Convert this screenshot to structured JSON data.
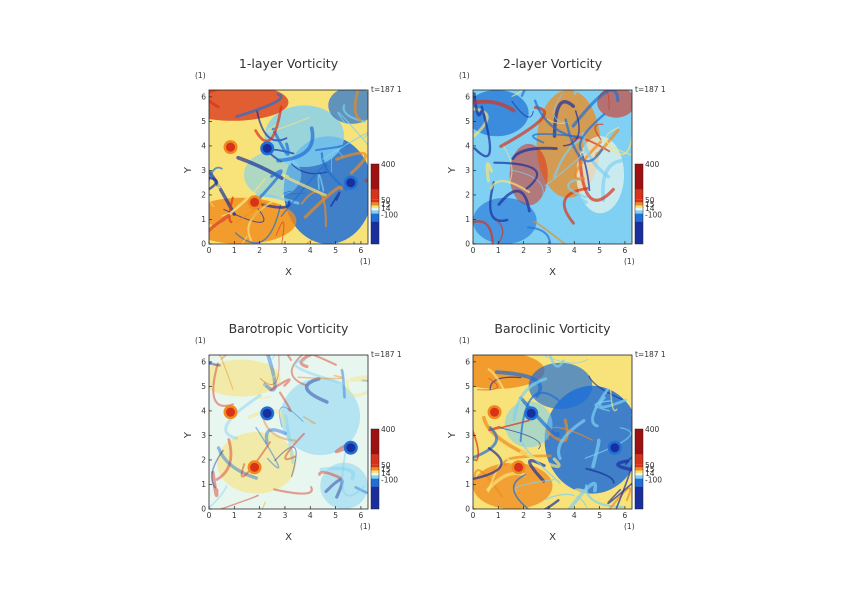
{
  "figure": {
    "colors": {
      "deep_blue": "#1a2f9e",
      "blue": "#1f6fd6",
      "light_blue": "#7fd0f2",
      "pale": "#e8f6f0",
      "yellow": "#f7e37a",
      "orange": "#f08a1c",
      "red": "#d8321a",
      "dark_red": "#a01010",
      "axis": "#222222"
    },
    "time_label": "t=187 1",
    "unit_label": "(1)",
    "colorbar_labels": [
      "400",
      "50",
      "15",
      "14",
      "-100"
    ]
  },
  "chart_data": [
    {
      "type": "heatmap",
      "title": "1-layer Vorticity",
      "xlabel": "X",
      "ylabel": "Y",
      "xlim": [
        0,
        6.28
      ],
      "ylim": [
        0,
        6.28
      ],
      "x_ticks": [
        "0",
        "1",
        "2",
        "3",
        "4",
        "5",
        "6"
      ],
      "y_ticks": [
        "0",
        "1",
        "2",
        "3",
        "4",
        "5",
        "6"
      ],
      "dominant_field": "mixed red/orange south, blue east",
      "vortices": [
        {
          "x": 0.85,
          "y": 3.95,
          "sign": "positive"
        },
        {
          "x": 1.8,
          "y": 1.7,
          "sign": "positive"
        },
        {
          "x": 2.3,
          "y": 3.9,
          "sign": "negative"
        },
        {
          "x": 5.6,
          "y": 2.5,
          "sign": "negative"
        }
      ]
    },
    {
      "type": "heatmap",
      "title": "2-layer Vorticity",
      "xlabel": "X",
      "ylabel": "Y",
      "xlim": [
        0,
        6.28
      ],
      "ylim": [
        0,
        6.28
      ],
      "x_ticks": [
        "0",
        "1",
        "2",
        "3",
        "4",
        "5",
        "6"
      ],
      "y_ticks": [
        "0",
        "1",
        "2",
        "3",
        "4",
        "5",
        "6"
      ],
      "dominant_field": "light blue with orange filaments",
      "vortices": []
    },
    {
      "type": "heatmap",
      "title": "Barotropic Vorticity",
      "xlabel": "X",
      "ylabel": "Y",
      "xlim": [
        0,
        6.28
      ],
      "ylim": [
        0,
        6.28
      ],
      "x_ticks": [
        "0",
        "1",
        "2",
        "3",
        "4",
        "5",
        "6"
      ],
      "y_ticks": [
        "0",
        "1",
        "2",
        "3",
        "4",
        "5",
        "6"
      ],
      "dominant_field": "pale yellow/cyan",
      "vortices": [
        {
          "x": 0.85,
          "y": 3.95,
          "sign": "positive"
        },
        {
          "x": 1.8,
          "y": 1.7,
          "sign": "positive"
        },
        {
          "x": 2.3,
          "y": 3.9,
          "sign": "negative"
        },
        {
          "x": 5.6,
          "y": 2.5,
          "sign": "negative"
        }
      ]
    },
    {
      "type": "heatmap",
      "title": "Baroclinic Vorticity",
      "xlabel": "X",
      "ylabel": "Y",
      "xlim": [
        0,
        6.28
      ],
      "ylim": [
        0,
        6.28
      ],
      "x_ticks": [
        "0",
        "1",
        "2",
        "3",
        "4",
        "5",
        "6"
      ],
      "y_ticks": [
        "0",
        "1",
        "2",
        "3",
        "4",
        "5",
        "6"
      ],
      "dominant_field": "yellow/orange west, blue east",
      "vortices": [
        {
          "x": 0.85,
          "y": 3.95,
          "sign": "positive"
        },
        {
          "x": 1.8,
          "y": 1.7,
          "sign": "positive"
        },
        {
          "x": 2.3,
          "y": 3.9,
          "sign": "negative"
        },
        {
          "x": 5.6,
          "y": 2.5,
          "sign": "negative"
        }
      ]
    }
  ]
}
